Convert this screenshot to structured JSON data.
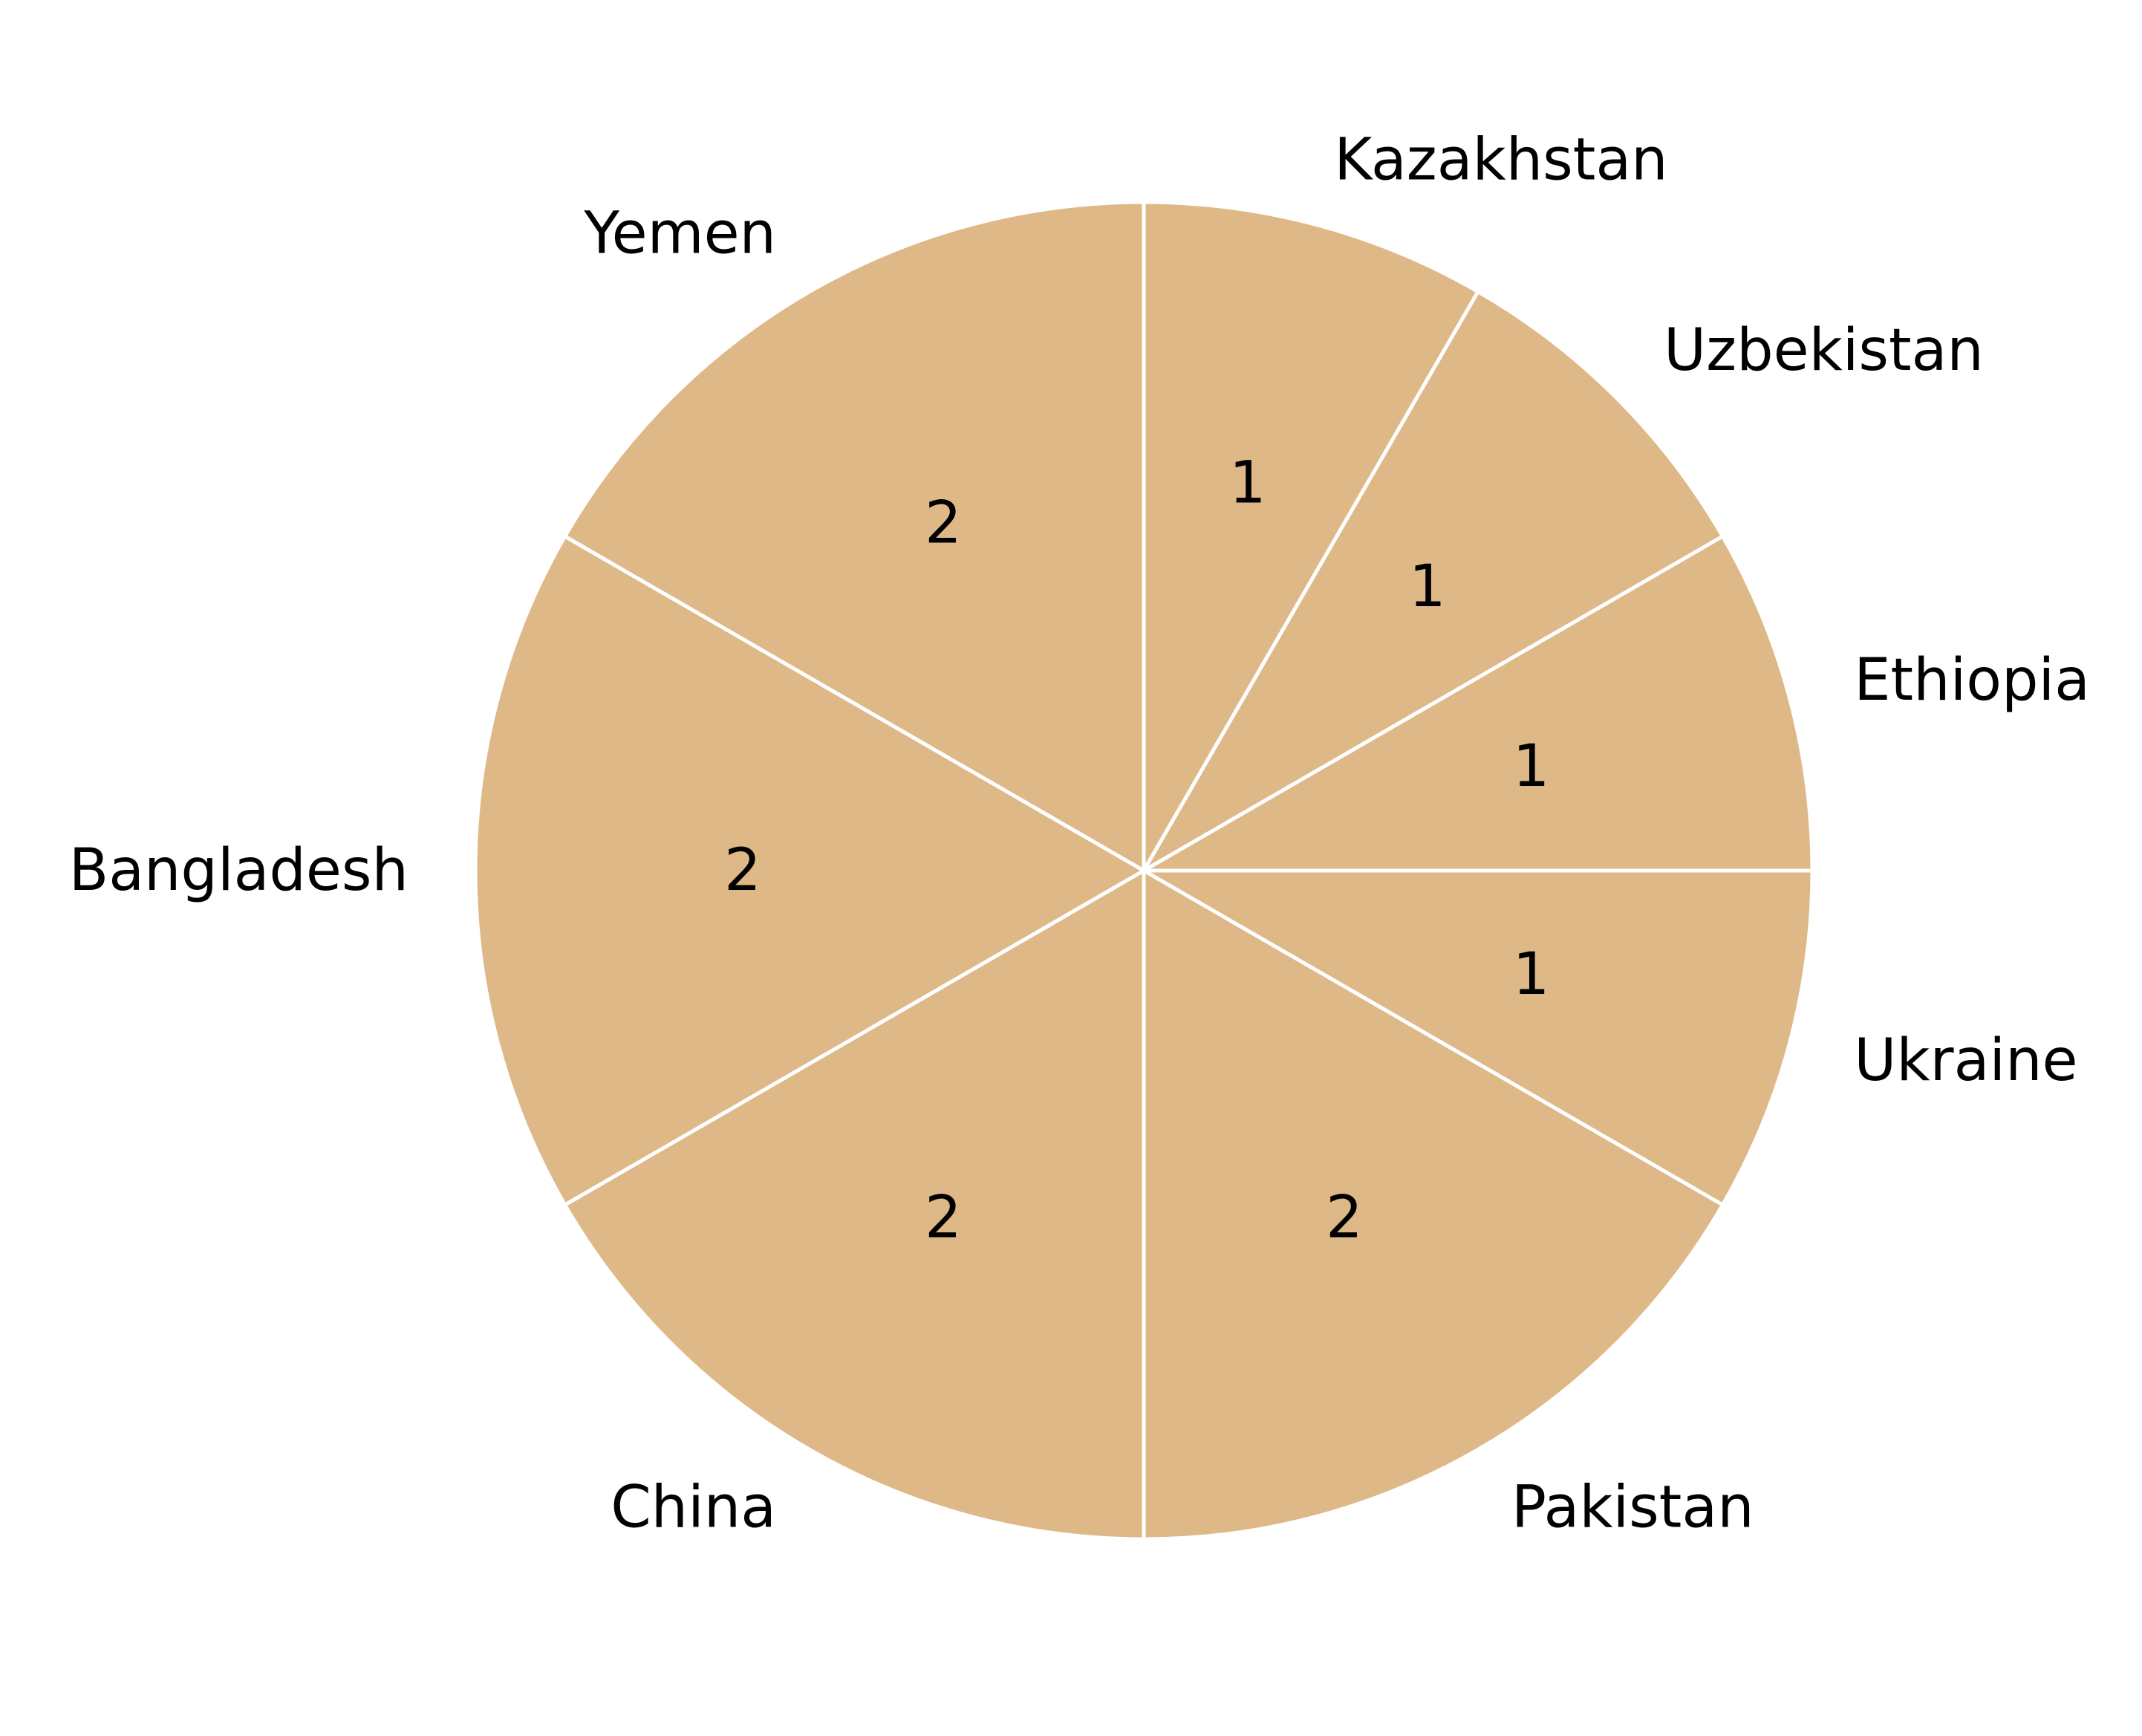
{
  "chart_data": {
    "type": "pie",
    "categories": [
      "Kazakhstan",
      "Uzbekistan",
      "Ethiopia",
      "Ukraine",
      "Pakistan",
      "China",
      "Bangladesh",
      "Yemen"
    ],
    "values": [
      1,
      1,
      1,
      1,
      2,
      2,
      2,
      2
    ],
    "value_labels": [
      "1",
      "1",
      "1",
      "1",
      "2",
      "2",
      "2",
      "2"
    ],
    "slice_color": "#DEB887",
    "edge_color": "#FFFFFF",
    "start_angle_deg": 90,
    "direction": "clockwise",
    "legend": "none",
    "title": ""
  }
}
